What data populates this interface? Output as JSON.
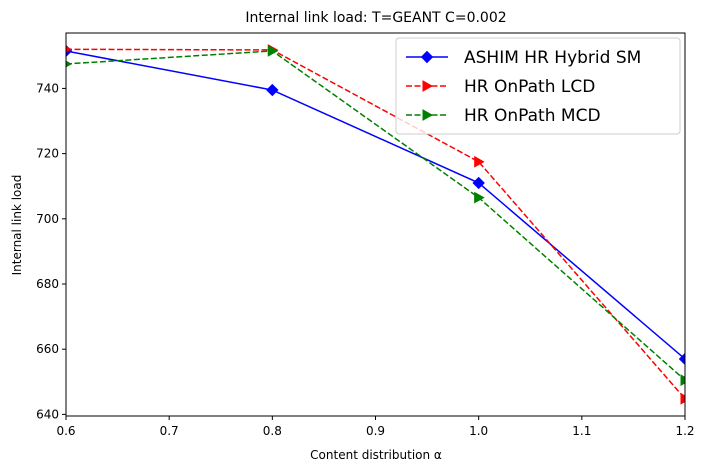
{
  "chart_data": {
    "type": "line",
    "title": "Internal link load: T=GEANT C=0.002",
    "xlabel": "Content distribution α",
    "ylabel": "Internal link load",
    "xlim": [
      0.6,
      1.2
    ],
    "ylim": [
      639.5,
      757.0
    ],
    "xticks": [
      0.6,
      0.7,
      0.8,
      0.9,
      1.0,
      1.1,
      1.2
    ],
    "xtick_labels": [
      "0.6",
      "0.7",
      "0.8",
      "0.9",
      "1.0",
      "1.1",
      "1.2"
    ],
    "yticks": [
      640,
      660,
      680,
      700,
      720,
      740
    ],
    "ytick_labels": [
      "640",
      "660",
      "680",
      "700",
      "720",
      "740"
    ],
    "grid": false,
    "legend_position": "top-right",
    "x": [
      0.6,
      0.8,
      1.0,
      1.2
    ],
    "series": [
      {
        "name": "ASHIM HR Hybrid SM",
        "values": [
          751.5,
          739.5,
          711.0,
          657.0
        ],
        "color": "#0000ff",
        "dash": "solid",
        "marker": "diamond"
      },
      {
        "name": "HR OnPath LCD",
        "values": [
          752.0,
          751.8,
          717.5,
          644.8
        ],
        "color": "#ff0000",
        "dash": "dashed",
        "marker": "triangle-right"
      },
      {
        "name": "HR OnPath MCD",
        "values": [
          747.5,
          751.5,
          706.5,
          650.5
        ],
        "color": "#008000",
        "dash": "dashed",
        "marker": "triangle-right"
      }
    ]
  }
}
